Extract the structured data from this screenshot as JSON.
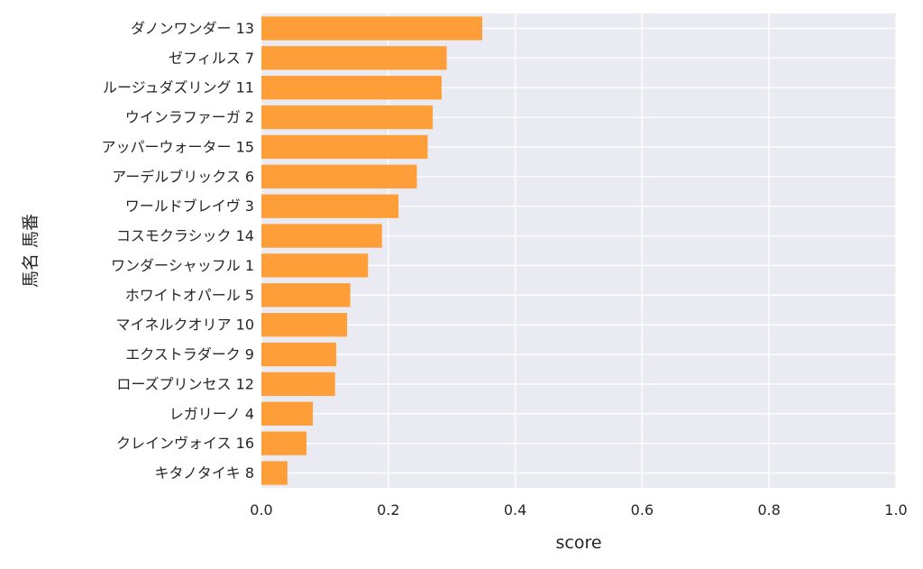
{
  "chart_data": {
    "type": "bar",
    "orientation": "horizontal",
    "title": "",
    "xlabel": "score",
    "ylabel": "馬名 馬番",
    "xlim": [
      0.0,
      1.0
    ],
    "xticks": [
      "0.0",
      "0.2",
      "0.4",
      "0.6",
      "0.8",
      "1.0"
    ],
    "grid": true,
    "bar_color": "#ff9a2e",
    "background_color": "#eaeaf2",
    "grid_color": "#ffffff",
    "categories": [
      "ダノンワンダー 13",
      "ゼフィルス 7",
      "ルージュダズリング 11",
      "ウインラファーガ 2",
      "アッパーウォーター 15",
      "アーデルブリックス 6",
      "ワールドブレイヴ 3",
      "コスモクラシック 14",
      "ワンダーシャッフル 1",
      "ホワイトオパール 5",
      "マイネルクオリア 10",
      "エクストラダーク 9",
      "ローズプリンセス 12",
      "レガリーノ 4",
      "クレインヴォイス 16",
      "キタノタイキ 8"
    ],
    "values": [
      0.348,
      0.292,
      0.284,
      0.27,
      0.262,
      0.245,
      0.216,
      0.19,
      0.168,
      0.14,
      0.135,
      0.118,
      0.116,
      0.081,
      0.071,
      0.041
    ]
  }
}
